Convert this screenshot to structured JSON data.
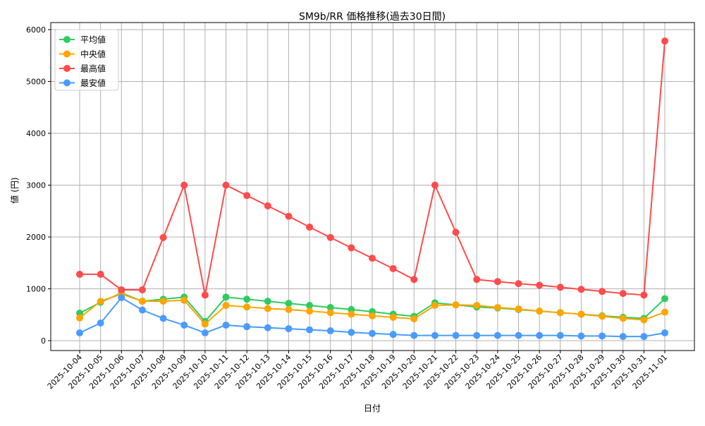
{
  "chart_data": {
    "type": "line",
    "title": "SM9b/RR 価格推移(過去30日間)",
    "xlabel": "日付",
    "ylabel": "値 (円)",
    "ylim": [
      -200,
      6050
    ],
    "yticks": [
      0,
      1000,
      2000,
      3000,
      4000,
      5000,
      6000
    ],
    "grid": true,
    "legend_position": "top-left",
    "categories": [
      "2025-10-04",
      "2025-10-05",
      "2025-10-06",
      "2025-10-07",
      "2025-10-08",
      "2025-10-09",
      "2025-10-10",
      "2025-10-11",
      "2025-10-12",
      "2025-10-13",
      "2025-10-14",
      "2025-10-15",
      "2025-10-16",
      "2025-10-17",
      "2025-10-18",
      "2025-10-19",
      "2025-10-20",
      "2025-10-21",
      "2025-10-22",
      "2025-10-23",
      "2025-10-24",
      "2025-10-25",
      "2025-10-26",
      "2025-10-27",
      "2025-10-28",
      "2025-10-29",
      "2025-10-30",
      "2025-10-31",
      "2025-11-01"
    ],
    "series": [
      {
        "name": "平均値",
        "color": "#2ecc5f",
        "values": [
          530,
          740,
          920,
          760,
          800,
          840,
          370,
          840,
          800,
          760,
          720,
          680,
          640,
          600,
          560,
          510,
          470,
          730,
          690,
          650,
          630,
          600,
          570,
          540,
          510,
          480,
          450,
          430,
          810
        ]
      },
      {
        "name": "中央値",
        "color": "#ffa500",
        "values": [
          440,
          760,
          900,
          760,
          760,
          780,
          320,
          680,
          650,
          620,
          600,
          570,
          540,
          510,
          480,
          450,
          420,
          680,
          690,
          680,
          640,
          610,
          570,
          540,
          510,
          470,
          430,
          400,
          550
        ]
      },
      {
        "name": "最高値",
        "color": "#ff4b4b",
        "values": [
          1280,
          1280,
          980,
          980,
          1990,
          3000,
          880,
          3000,
          2800,
          2600,
          2400,
          2190,
          1990,
          1790,
          1590,
          1390,
          1180,
          3000,
          2090,
          1180,
          1140,
          1100,
          1070,
          1030,
          990,
          950,
          910,
          880,
          5780
        ]
      },
      {
        "name": "最安値",
        "color": "#4b9bff",
        "values": [
          150,
          340,
          830,
          590,
          430,
          300,
          150,
          300,
          270,
          250,
          230,
          210,
          190,
          160,
          140,
          120,
          100,
          100,
          100,
          100,
          100,
          100,
          100,
          100,
          90,
          90,
          80,
          80,
          150
        ]
      }
    ]
  }
}
